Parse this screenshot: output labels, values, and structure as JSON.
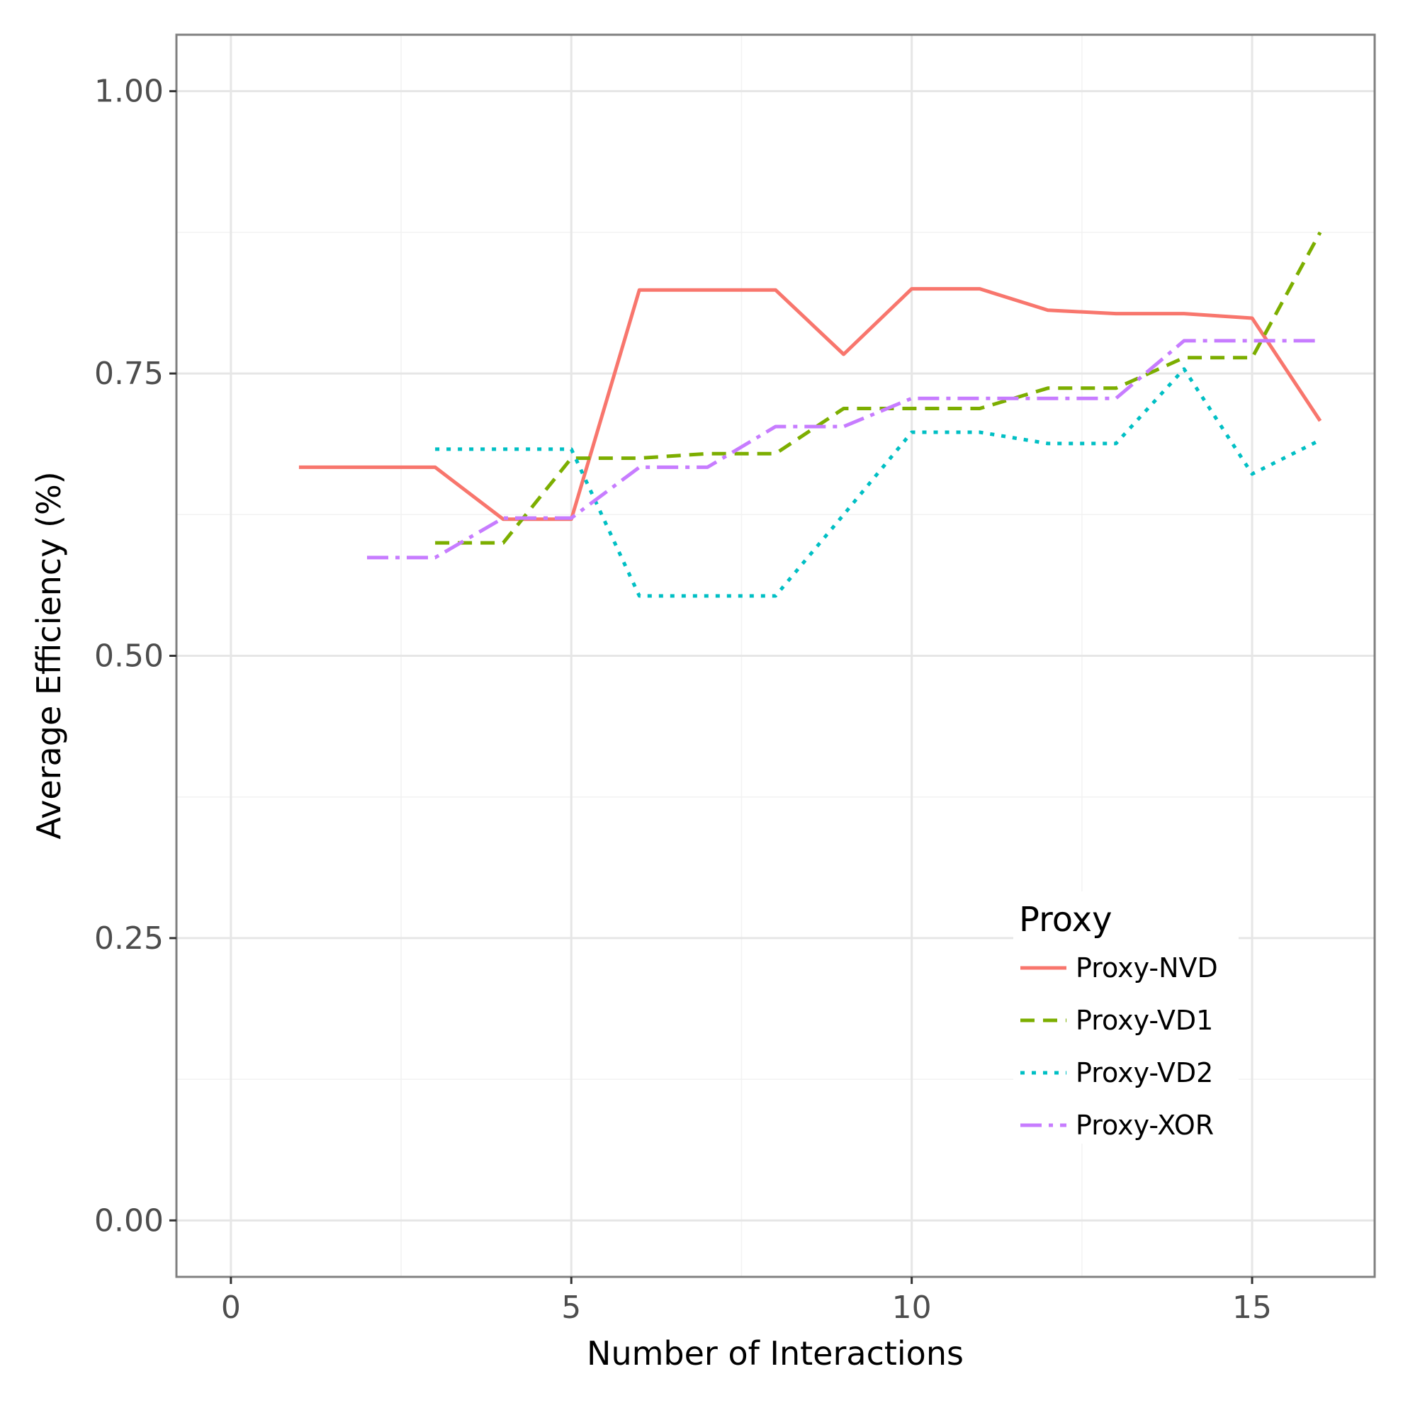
{
  "chart_data": {
    "type": "line",
    "xlabel": "Number of Interactions",
    "ylabel": "Average Efficiency (%)",
    "xlim": [
      -0.8,
      16.8
    ],
    "ylim": [
      -0.05,
      1.05
    ],
    "x_ticks": [
      0,
      5,
      10,
      15
    ],
    "x_tick_labels": [
      "0",
      "5",
      "10",
      "15"
    ],
    "y_ticks": [
      0,
      0.25,
      0.5,
      0.75,
      1.0
    ],
    "y_tick_labels": [
      "0.00",
      "0.25",
      "0.50",
      "0.75",
      "1.00"
    ],
    "grid": true,
    "legend": {
      "title": "Proxy",
      "position": "bottom-right"
    },
    "series": [
      {
        "name": "Proxy-NVD",
        "color": "#F8766D",
        "dash": "solid",
        "x": [
          1,
          2,
          3,
          4,
          5,
          6,
          7,
          8,
          9,
          10,
          11,
          12,
          13,
          14,
          15,
          16
        ],
        "y": [
          0.667,
          0.667,
          0.667,
          0.621,
          0.621,
          0.824,
          0.824,
          0.824,
          0.767,
          0.825,
          0.825,
          0.806,
          0.803,
          0.803,
          0.799,
          0.708
        ]
      },
      {
        "name": "Proxy-VD1",
        "color": "#7CAE00",
        "dash": "dashed",
        "x": [
          3,
          4,
          5,
          6,
          7,
          8,
          9,
          10,
          11,
          12,
          13,
          14,
          15,
          16
        ],
        "y": [
          0.6,
          0.6,
          0.675,
          0.675,
          0.679,
          0.679,
          0.719,
          0.719,
          0.719,
          0.737,
          0.737,
          0.764,
          0.764,
          0.875
        ]
      },
      {
        "name": "Proxy-VD2",
        "color": "#00BFC4",
        "dash": "dotted",
        "x": [
          3,
          4,
          5,
          6,
          7,
          8,
          9,
          10,
          11,
          12,
          13,
          14,
          15,
          16
        ],
        "y": [
          0.683,
          0.683,
          0.683,
          0.553,
          0.553,
          0.553,
          0.625,
          0.698,
          0.698,
          0.688,
          0.688,
          0.754,
          0.661,
          0.691
        ]
      },
      {
        "name": "Proxy-XOR",
        "color": "#C77CFF",
        "dash": "dotdash",
        "x": [
          2,
          3,
          4,
          5,
          6,
          7,
          8,
          9,
          10,
          11,
          12,
          13,
          14,
          15,
          16
        ],
        "y": [
          0.587,
          0.587,
          0.622,
          0.622,
          0.667,
          0.667,
          0.703,
          0.703,
          0.728,
          0.728,
          0.728,
          0.728,
          0.779,
          0.779,
          0.779
        ]
      }
    ]
  }
}
